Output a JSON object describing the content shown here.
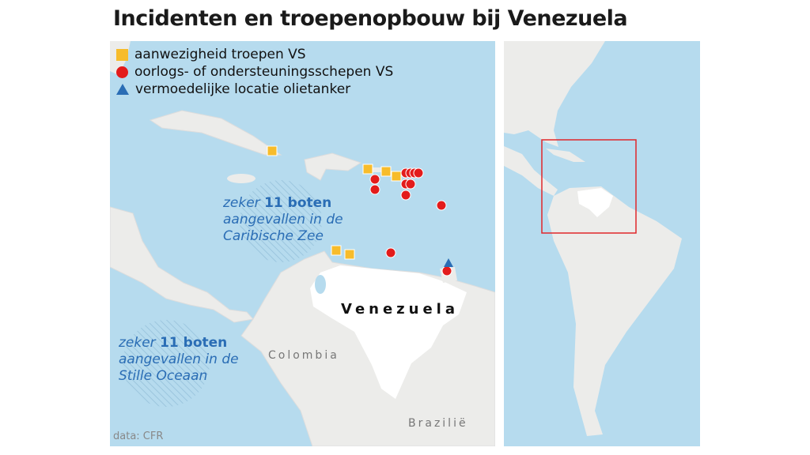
{
  "title": "Incidenten en troepenopbouw bij Venezuela",
  "legend": [
    {
      "symbol": "square",
      "color": "#f7bc2b",
      "label": "aanwezigheid troepen VS"
    },
    {
      "symbol": "circle",
      "color": "#e31b1b",
      "label": "oorlogs- of ondersteuningsschepen VS"
    },
    {
      "symbol": "triangle",
      "color": "#2a6db5",
      "label": "vermoedelijke locatie olietanker"
    }
  ],
  "annotations": {
    "caribbean": {
      "prefix": "zeker",
      "count": "11 boten",
      "line2": "aangevallen in de",
      "line3": "Caribische Zee"
    },
    "pacific": {
      "prefix": "zeker",
      "count": "11 boten",
      "line2": "aangevallen in de",
      "line3": "Stille Oceaan"
    }
  },
  "countries": {
    "venezuela": "Venezuela",
    "colombia": "Colombia",
    "brazil": "Brazilië"
  },
  "source": "data: CFR",
  "colors": {
    "sea": "#b6dbee",
    "land": "#ececea",
    "highlight": "#ffffff",
    "inset_frame": "#e0262a",
    "annotation": "#2a6db5"
  }
}
